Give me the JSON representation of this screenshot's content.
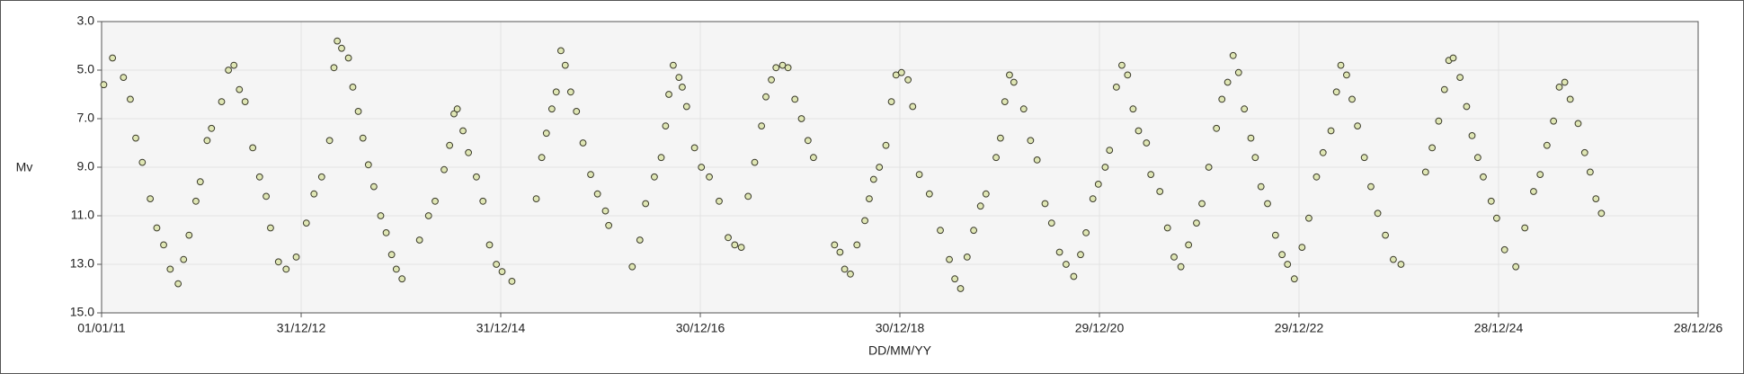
{
  "chart_data": {
    "type": "scatter",
    "x_label": "DD/MM/YY",
    "y_label": "Mv",
    "x": [
      "09/01/11",
      "10/02/11",
      "22/03/11",
      "16/04/11",
      "06/05/11",
      "30/05/11",
      "28/06/11",
      "22/07/11",
      "16/08/11",
      "09/09/11",
      "08/10/11",
      "28/10/11",
      "17/11/11",
      "12/12/11",
      "28/12/11",
      "22/01/12",
      "07/02/12",
      "15/03/12",
      "09/04/12",
      "29/04/12",
      "19/05/12",
      "09/06/12",
      "07/07/12",
      "01/08/12",
      "25/08/12",
      "10/09/12",
      "09/10/12",
      "06/11/12",
      "13/12/12",
      "19/01/13",
      "16/02/13",
      "16/03/13",
      "14/04/13",
      "30/04/13",
      "12/05/13",
      "28/05/13",
      "22/06/13",
      "08/07/13",
      "28/07/13",
      "14/08/13",
      "03/09/13",
      "23/09/13",
      "18/10/13",
      "07/11/13",
      "27/11/13",
      "14/12/13",
      "04/01/14",
      "09/03/14",
      "11/04/14",
      "05/05/14",
      "07/06/14",
      "27/06/14",
      "13/07/14",
      "25/07/14",
      "15/08/14",
      "04/09/14",
      "03/10/14",
      "27/10/14",
      "20/11/14",
      "15/12/14",
      "05/01/15",
      "10/02/15",
      "10/05/15",
      "30/05/15",
      "16/06/15",
      "06/07/15",
      "22/07/15",
      "08/08/15",
      "24/08/15",
      "13/09/15",
      "04/10/15",
      "28/10/15",
      "25/11/15",
      "20/12/15",
      "18/01/16",
      "30/01/16",
      "25/04/16",
      "23/05/16",
      "13/06/16",
      "15/07/16",
      "09/08/16",
      "25/08/16",
      "06/09/16",
      "22/09/16",
      "13/10/16",
      "25/10/16",
      "10/11/16",
      "09/12/16",
      "03/01/17",
      "01/02/17",
      "09/03/17",
      "11/04/17",
      "05/05/17",
      "29/05/17",
      "23/06/17",
      "17/07/17",
      "11/08/17",
      "27/08/17",
      "16/09/17",
      "03/10/17",
      "27/10/17",
      "16/11/17",
      "11/12/17",
      "04/01/18",
      "28/01/18",
      "17/02/18",
      "05/05/18",
      "25/05/18",
      "11/06/18",
      "02/07/18",
      "26/07/18",
      "24/08/18",
      "09/09/18",
      "25/09/18",
      "16/10/18",
      "09/11/18",
      "29/11/18",
      "16/12/18",
      "05/01/19",
      "29/01/19",
      "15/02/19",
      "11/03/19",
      "17/04/19",
      "27/05/19",
      "29/06/19",
      "19/07/19",
      "09/08/19",
      "02/09/19",
      "26/09/19",
      "21/10/19",
      "10/11/19",
      "17/12/19",
      "02/01/20",
      "18/01/20",
      "04/02/20",
      "20/02/20",
      "27/03/20",
      "21/04/20",
      "15/05/20",
      "13/06/20",
      "07/07/20",
      "05/08/20",
      "29/08/20",
      "26/09/20",
      "21/10/20",
      "10/11/20",
      "05/12/20",
      "25/12/20",
      "19/01/21",
      "04/02/21",
      "01/03/21",
      "21/03/21",
      "11/04/21",
      "01/05/21",
      "21/05/21",
      "19/06/21",
      "05/07/21",
      "07/08/21",
      "04/09/21",
      "28/09/21",
      "23/10/21",
      "20/11/21",
      "19/12/21",
      "08/01/22",
      "02/02/22",
      "02/03/22",
      "22/03/22",
      "12/04/22",
      "02/05/22",
      "22/05/22",
      "12/06/22",
      "06/07/22",
      "22/07/22",
      "12/08/22",
      "05/09/22",
      "04/10/22",
      "28/10/22",
      "17/11/22",
      "12/12/22",
      "09/01/23",
      "03/02/23",
      "03/03/23",
      "27/03/23",
      "25/04/23",
      "15/05/23",
      "31/05/23",
      "21/06/23",
      "11/07/23",
      "31/07/23",
      "25/08/23",
      "18/09/23",
      "13/10/23",
      "10/11/23",
      "09/12/23",
      "06/01/24",
      "05/04/24",
      "29/04/24",
      "23/05/24",
      "13/06/24",
      "29/06/24",
      "15/07/24",
      "09/08/24",
      "02/09/24",
      "22/09/24",
      "13/10/24",
      "02/11/24",
      "01/12/24",
      "21/12/24",
      "19/01/25",
      "01/03/25",
      "03/04/25",
      "05/05/25",
      "29/05/25",
      "23/06/25",
      "17/07/25",
      "07/08/25",
      "27/08/25",
      "16/09/25",
      "15/10/25",
      "08/11/25",
      "28/11/25",
      "19/12/25",
      "08/01/26"
    ],
    "values": [
      5.6,
      4.5,
      5.3,
      6.2,
      7.8,
      8.8,
      10.3,
      11.5,
      12.2,
      13.2,
      13.8,
      12.8,
      11.8,
      10.4,
      9.6,
      7.9,
      7.4,
      6.3,
      5.0,
      4.8,
      5.8,
      6.3,
      8.2,
      9.4,
      10.2,
      11.5,
      12.9,
      13.2,
      12.7,
      11.3,
      10.1,
      9.4,
      7.9,
      4.9,
      3.8,
      4.1,
      4.5,
      5.7,
      6.7,
      7.8,
      8.9,
      9.8,
      11.0,
      11.7,
      12.6,
      13.2,
      13.6,
      12.0,
      11.0,
      10.4,
      9.1,
      8.1,
      6.8,
      6.6,
      7.5,
      8.4,
      9.4,
      10.4,
      12.2,
      13.0,
      13.3,
      13.7,
      10.3,
      8.6,
      7.6,
      6.6,
      5.9,
      4.2,
      4.8,
      5.9,
      6.7,
      8.0,
      9.3,
      10.1,
      10.8,
      11.4,
      13.1,
      12.0,
      10.5,
      9.4,
      8.6,
      7.3,
      6.0,
      4.8,
      5.3,
      5.7,
      6.5,
      8.2,
      9.0,
      9.4,
      10.4,
      11.9,
      12.2,
      12.3,
      10.2,
      8.8,
      7.3,
      6.1,
      5.4,
      4.9,
      4.8,
      4.9,
      6.2,
      7.0,
      7.9,
      8.6,
      12.2,
      12.5,
      13.2,
      13.4,
      12.2,
      11.2,
      10.3,
      9.5,
      9.0,
      8.1,
      6.3,
      5.2,
      5.1,
      5.4,
      6.5,
      9.3,
      10.1,
      11.6,
      12.8,
      13.6,
      14.0,
      12.7,
      11.6,
      10.6,
      10.1,
      8.6,
      7.8,
      6.3,
      5.2,
      5.5,
      6.6,
      7.9,
      8.7,
      10.5,
      11.3,
      12.5,
      13.0,
      13.5,
      12.6,
      11.7,
      10.3,
      9.7,
      9.0,
      8.3,
      5.7,
      4.8,
      5.2,
      6.6,
      7.5,
      8.0,
      9.3,
      10.0,
      11.5,
      12.7,
      13.1,
      12.2,
      11.3,
      10.5,
      9.0,
      7.4,
      6.2,
      5.5,
      4.4,
      5.1,
      6.6,
      7.8,
      8.6,
      9.8,
      10.5,
      11.8,
      12.6,
      13.0,
      13.6,
      12.3,
      11.1,
      9.4,
      8.4,
      7.5,
      5.9,
      4.8,
      5.2,
      6.2,
      7.3,
      8.6,
      9.8,
      10.9,
      11.8,
      12.8,
      13.0,
      9.2,
      8.2,
      7.1,
      5.8,
      4.6,
      4.5,
      5.3,
      6.5,
      7.7,
      8.6,
      9.4,
      10.4,
      11.1,
      12.4,
      13.1,
      11.5,
      10.0,
      9.3,
      8.1,
      7.1,
      5.7,
      5.5,
      6.2,
      7.2,
      8.4,
      9.2,
      10.3,
      10.9
    ],
    "color": "#dfe6b4",
    "edge_color": "#3a3a2a",
    "xlim": [
      "01/01/11",
      "28/12/26"
    ],
    "xticks": [
      "01/01/11",
      "31/12/12",
      "31/12/14",
      "30/12/16",
      "30/12/18",
      "29/12/20",
      "29/12/22",
      "28/12/24",
      "28/12/26"
    ],
    "ylim": [
      3,
      15
    ],
    "y_inverted": true,
    "yticks": [
      {
        "value": 3,
        "label": "3.0"
      },
      {
        "value": 5,
        "label": "5.0"
      },
      {
        "value": 7,
        "label": "7.0"
      },
      {
        "value": 9,
        "label": "9.0"
      },
      {
        "value": 11,
        "label": "11.0"
      },
      {
        "value": 13,
        "label": "13.0"
      },
      {
        "value": 15,
        "label": "15.0"
      }
    ],
    "grid": true
  }
}
